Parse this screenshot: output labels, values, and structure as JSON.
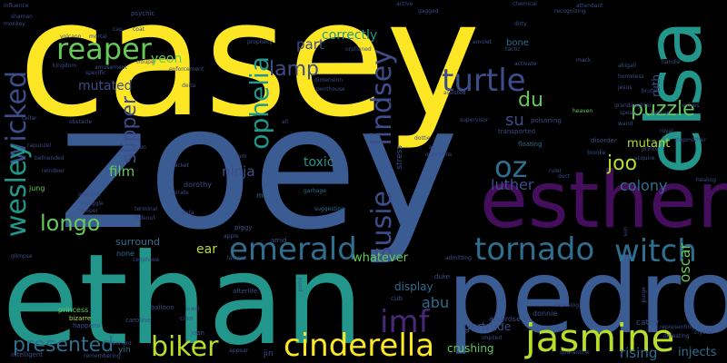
{
  "palette": {
    "yellow": "#fde725",
    "blue": "#3b5b93",
    "teal": "#22968a",
    "purple": "#440e5c",
    "green": "#65c95a",
    "lime": "#b8de29"
  },
  "words": [
    {
      "text": "casey",
      "color": "#fde725"
    },
    {
      "text": "zoey",
      "color": "#3b5b93"
    },
    {
      "text": "ethan",
      "color": "#22968a"
    },
    {
      "text": "pedro",
      "color": "#3b5b93"
    },
    {
      "text": "esther",
      "color": "#440e5c"
    },
    {
      "text": "elsa",
      "color": "#22968a"
    },
    {
      "text": "jasmine",
      "color": "#b8de29"
    },
    {
      "text": "cinderella",
      "color": "#fde725"
    },
    {
      "text": "emerald",
      "color": "#2f6e8e"
    },
    {
      "text": "tornado",
      "color": "#2f6e8e"
    },
    {
      "text": "witch",
      "color": "#2f6e8e"
    },
    {
      "text": "turtle",
      "color": "#3d4d8a"
    },
    {
      "text": "reaper",
      "color": "#65c95a"
    },
    {
      "text": "wicked",
      "color": "#3d4d8a"
    },
    {
      "text": "wesley",
      "color": "#22968a"
    },
    {
      "text": "susie",
      "color": "#3d4d8a"
    },
    {
      "text": "lindsey",
      "color": "#3d4d8a"
    },
    {
      "text": "ophelia",
      "color": "#22968a"
    },
    {
      "text": "biker",
      "color": "#b8de29"
    },
    {
      "text": "imf",
      "color": "#482878"
    },
    {
      "text": "oz",
      "color": "#2f6e8e"
    },
    {
      "text": "lamp",
      "color": "#3d4d8a"
    },
    {
      "text": "longo",
      "color": "#65c95a"
    },
    {
      "text": "presented",
      "color": "#2f6e8e"
    },
    {
      "text": "puzzle",
      "color": "#65c95a"
    },
    {
      "text": "slipper",
      "color": "#3d4d8a"
    },
    {
      "text": "du",
      "color": "#65c95a"
    },
    {
      "text": "joo",
      "color": "#b8de29"
    },
    {
      "text": "colony",
      "color": "#2f6e8e"
    },
    {
      "text": "mutant",
      "color": "#b8de29"
    },
    {
      "text": "oscar",
      "color": "#65c95a"
    },
    {
      "text": "luther",
      "color": "#3d4d8a"
    },
    {
      "text": "su",
      "color": "#3d4d8a"
    },
    {
      "text": "toxic",
      "color": "#22968a"
    },
    {
      "text": "ninja",
      "color": "#3d4d8a"
    },
    {
      "text": "film",
      "color": "#65c95a"
    },
    {
      "text": "part",
      "color": "#3d4d8a"
    },
    {
      "text": "yeon",
      "color": "#65c95a"
    },
    {
      "text": "correctly",
      "color": "#22968a"
    },
    {
      "text": "mutated",
      "color": "#3d4d8a"
    },
    {
      "text": "ear",
      "color": "#b8de29"
    },
    {
      "text": "surround",
      "color": "#2f6e8e"
    },
    {
      "text": "whatever",
      "color": "#65c95a"
    },
    {
      "text": "abu",
      "color": "#2f6e8e"
    },
    {
      "text": "display",
      "color": "#2f6e8e"
    },
    {
      "text": "gertrude",
      "color": "#3d4d8a"
    },
    {
      "text": "crushing",
      "color": "#65c95a"
    },
    {
      "text": "rising",
      "color": "#2f6e8e"
    },
    {
      "text": "injects",
      "color": "#2f6e8e"
    },
    {
      "text": "ruth",
      "color": "#3d4d8a"
    },
    {
      "text": "bone",
      "color": "#2f6e8e"
    },
    {
      "text": "stress",
      "color": "#3d4d8a"
    },
    {
      "text": "cathy",
      "color": "#3d4d8a"
    },
    {
      "text": "dorothy",
      "color": "#3d4d8a"
    },
    {
      "text": "jung",
      "color": "#65c95a"
    },
    {
      "text": "none",
      "color": "#2f6e8e"
    },
    {
      "text": "mill",
      "color": "#2f6e8e"
    },
    {
      "text": "piggy",
      "color": "#3d4d8a"
    },
    {
      "text": "amid",
      "color": "#3d4d8a"
    },
    {
      "text": "donnie",
      "color": "#3d4d8a"
    },
    {
      "text": "ambrose",
      "color": "#3d4d8a"
    },
    {
      "text": "duke",
      "color": "#3d4d8a"
    },
    {
      "text": "cub",
      "color": "#3d4d8a"
    },
    {
      "text": "jin",
      "color": "#3d4d8a"
    },
    {
      "text": "yin",
      "color": "#2f6e8e"
    },
    {
      "text": "joan",
      "color": "#3d4d8a"
    },
    {
      "text": "cian",
      "color": "#3d4d8a"
    },
    {
      "text": "balloon",
      "color": "#3d4d8a"
    },
    {
      "text": "princess",
      "color": "#65c95a"
    },
    {
      "text": "bizarre",
      "color": "#b8de29"
    },
    {
      "text": "happens",
      "color": "#3d4d8a"
    },
    {
      "text": "caroline",
      "color": "#3d4d8a"
    },
    {
      "text": "leonard",
      "color": "#3d4d8a"
    },
    {
      "text": "intelligent",
      "color": "#3d4d8a"
    },
    {
      "text": "afterlife",
      "color": "#3d4d8a"
    },
    {
      "text": "garbage",
      "color": "#2f6e8e"
    },
    {
      "text": "suggesting",
      "color": "#2f6e8e"
    },
    {
      "text": "dimension",
      "color": "#3d4d8a"
    },
    {
      "text": "poisoning",
      "color": "#3d4d8a"
    },
    {
      "text": "transported",
      "color": "#3d4d8a"
    },
    {
      "text": "supervisor",
      "color": "#3d4d8a"
    },
    {
      "text": "floating",
      "color": "#2f6e8e"
    },
    {
      "text": "disorder",
      "color": "#3d4d8a"
    },
    {
      "text": "heaven",
      "color": "#65c95a"
    },
    {
      "text": "grandaughter",
      "color": "#3d4d8a"
    },
    {
      "text": "stepmother",
      "color": "#3d4d8a"
    },
    {
      "text": "brutal",
      "color": "#3d4d8a"
    },
    {
      "text": "amulet",
      "color": "#3d4d8a"
    },
    {
      "text": "chemical",
      "color": "#3d4d8a"
    },
    {
      "text": "psychic",
      "color": "#3d4d8a"
    },
    {
      "text": "coat",
      "color": "#3d4d8a"
    },
    {
      "text": "troupe",
      "color": "#3d4d8a"
    },
    {
      "text": "enforcement",
      "color": "#3d4d8a"
    },
    {
      "text": "prophecy",
      "color": "#3d4d8a"
    },
    {
      "text": "orphaned",
      "color": "#3d4d8a"
    },
    {
      "text": "amusement",
      "color": "#3d4d8a"
    },
    {
      "text": "obstacle",
      "color": "#3d4d8a"
    },
    {
      "text": "cellar",
      "color": "#3d4d8a"
    },
    {
      "text": "trooper",
      "color": "#3d4d8a"
    },
    {
      "text": "grenade",
      "color": "#3d4d8a"
    },
    {
      "text": "smuggle",
      "color": "#3d4d8a"
    },
    {
      "text": "terminal",
      "color": "#3d4d8a"
    },
    {
      "text": "hideout",
      "color": "#3d4d8a"
    },
    {
      "text": "reindeer",
      "color": "#3d4d8a"
    },
    {
      "text": "befriended",
      "color": "#3d4d8a"
    },
    {
      "text": "rapunzel",
      "color": "#3d4d8a"
    },
    {
      "text": "kingdom",
      "color": "#3d4d8a"
    },
    {
      "text": "volcano",
      "color": "#3d4d8a"
    },
    {
      "text": "monkey",
      "color": "#3d4d8a"
    },
    {
      "text": "shaman",
      "color": "#3d4d8a"
    },
    {
      "text": "influence",
      "color": "#3d4d8a"
    },
    {
      "text": "attendant",
      "color": "#3d4d8a"
    },
    {
      "text": "recognizing",
      "color": "#3d4d8a"
    },
    {
      "text": "homeless",
      "color": "#3d4d8a"
    },
    {
      "text": "jesus",
      "color": "#3d4d8a"
    },
    {
      "text": "abigail",
      "color": "#3d4d8a"
    },
    {
      "text": "handle",
      "color": "#3d4d8a"
    },
    {
      "text": "revives",
      "color": "#3d4d8a"
    },
    {
      "text": "healing",
      "color": "#3d4d8a"
    },
    {
      "text": "crystal",
      "color": "#3d4d8a"
    },
    {
      "text": "representing",
      "color": "#3d4d8a"
    },
    {
      "text": "defeating",
      "color": "#3d4d8a"
    },
    {
      "text": "quarantine",
      "color": "#3d4d8a"
    },
    {
      "text": "exposing",
      "color": "#3d4d8a"
    },
    {
      "text": "implied",
      "color": "#3d4d8a"
    },
    {
      "text": "admitting",
      "color": "#3d4d8a"
    },
    {
      "text": "jewel",
      "color": "#3d4d8a"
    },
    {
      "text": "lament",
      "color": "#3d4d8a"
    },
    {
      "text": "cellphone",
      "color": "#3d4d8a"
    },
    {
      "text": "glimpse",
      "color": "#3d4d8a"
    },
    {
      "text": "remembering",
      "color": "#3d4d8a"
    },
    {
      "text": "appear",
      "color": "#3d4d8a"
    },
    {
      "text": "activate",
      "color": "#3d4d8a"
    },
    {
      "text": "assisted",
      "color": "#3d4d8a"
    },
    {
      "text": "penthouse",
      "color": "#3d4d8a"
    },
    {
      "text": "gagged",
      "color": "#3d4d8a"
    },
    {
      "text": "active",
      "color": "#3d4d8a"
    },
    {
      "text": "dirty",
      "color": "#3d4d8a"
    },
    {
      "text": "tactic",
      "color": "#3d4d8a"
    },
    {
      "text": "mack",
      "color": "#3d4d8a"
    },
    {
      "text": "imprisons",
      "color": "#3d4d8a"
    },
    {
      "text": "dottie",
      "color": "#3d4d8a"
    },
    {
      "text": "ruler",
      "color": "#3d4d8a"
    },
    {
      "text": "duct",
      "color": "#3d4d8a"
    },
    {
      "text": "brooke",
      "color": "#3d4d8a"
    },
    {
      "text": "royal",
      "color": "#3d4d8a"
    },
    {
      "text": "wand",
      "color": "#3d4d8a"
    },
    {
      "text": "forever",
      "color": "#3d4d8a"
    },
    {
      "text": "spear",
      "color": "#3d4d8a"
    },
    {
      "text": "prince",
      "color": "#3d4d8a"
    },
    {
      "text": "purge",
      "color": "#3d4d8a"
    },
    {
      "text": "acquire",
      "color": "#3d4d8a"
    },
    {
      "text": "sun",
      "color": "#3d4d8a"
    },
    {
      "text": "deita",
      "color": "#3d4d8a"
    },
    {
      "text": "dam",
      "color": "#3d4d8a"
    },
    {
      "text": "jacket",
      "color": "#3d4d8a"
    },
    {
      "text": "pirate",
      "color": "#3d4d8a"
    },
    {
      "text": "data",
      "color": "#3d4d8a"
    },
    {
      "text": "apple",
      "color": "#3d4d8a"
    },
    {
      "text": "pond",
      "color": "#3d4d8a"
    },
    {
      "text": "hyun",
      "color": "#3d4d8a"
    },
    {
      "text": "all",
      "color": "#3d4d8a"
    },
    {
      "text": "ai",
      "color": "#3d4d8a"
    },
    {
      "text": "specific",
      "color": "#3d4d8a"
    },
    {
      "text": "cap",
      "color": "#3d4d8a"
    },
    {
      "text": "mortal",
      "color": "#3d4d8a"
    }
  ]
}
